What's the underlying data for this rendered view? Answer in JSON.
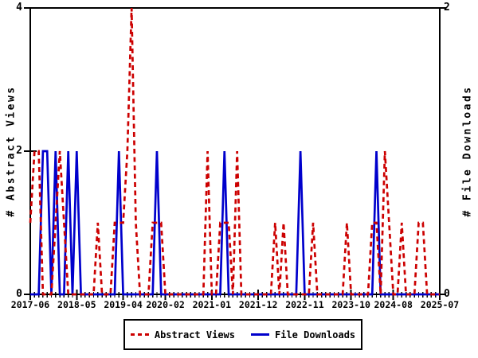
{
  "chart_data": {
    "type": "line",
    "title": "",
    "x_axis": {
      "unit": "month",
      "start": "2017-06",
      "end": "2025-07",
      "n_points": 98,
      "tick_labels": [
        "2017-06",
        "2018-05",
        "2019-04",
        "2020-02",
        "2021-01",
        "2021-12",
        "2022-11",
        "2023-10",
        "2024-08",
        "2025-07"
      ],
      "tick_month_indices": [
        0,
        11,
        22,
        32,
        43,
        54,
        65,
        76,
        86,
        97
      ]
    },
    "left_axis": {
      "label": "# Abstract Views",
      "min": 0,
      "max": 4,
      "tick_values": [
        0,
        2,
        4
      ],
      "tick_labels": [
        "0",
        "2",
        "4"
      ]
    },
    "right_axis": {
      "label": "# File Downloads",
      "min": 0,
      "max": 2,
      "tick_values": [
        0,
        2
      ],
      "tick_labels": [
        "0",
        "2"
      ]
    },
    "grid": false,
    "legend": {
      "position": "bottom-center",
      "entries": [
        "Abstract Views",
        "File Downloads"
      ]
    },
    "series": [
      {
        "name": "Abstract Views",
        "axis": "left",
        "color": "#cc0000",
        "line_style": "dashed",
        "values": [
          1,
          2,
          2,
          0,
          0,
          0,
          1,
          2,
          1,
          0,
          0,
          0,
          0,
          0,
          0,
          0,
          1,
          0,
          0,
          0,
          1,
          1,
          1,
          2,
          4,
          1,
          0,
          0,
          0,
          1,
          1,
          1,
          0,
          0,
          0,
          0,
          0,
          0,
          0,
          0,
          0,
          0,
          2,
          0,
          0,
          1,
          1,
          1,
          0,
          2,
          0,
          0,
          0,
          0,
          0,
          0,
          0,
          0,
          1,
          0,
          1,
          0,
          0,
          0,
          0,
          0,
          0,
          1,
          0,
          0,
          0,
          0,
          0,
          0,
          0,
          1,
          0,
          0,
          0,
          0,
          0,
          1,
          1,
          0,
          2,
          1,
          0,
          0,
          1,
          0,
          0,
          0,
          1,
          1,
          0,
          0,
          0,
          0
        ]
      },
      {
        "name": "File Downloads",
        "axis": "right",
        "color": "#0000cc",
        "line_style": "solid",
        "values": [
          0,
          0,
          0,
          1,
          1,
          0,
          1,
          0,
          0,
          1,
          0,
          1,
          0,
          0,
          0,
          0,
          0,
          0,
          0,
          0,
          0,
          1,
          0,
          0,
          0,
          0,
          0,
          0,
          0,
          0,
          1,
          0,
          0,
          0,
          0,
          0,
          0,
          0,
          0,
          0,
          0,
          0,
          0,
          0,
          0,
          0,
          1,
          0,
          0,
          0,
          0,
          0,
          0,
          0,
          0,
          0,
          0,
          0,
          0,
          0,
          0,
          0,
          0,
          0,
          1,
          0,
          0,
          0,
          0,
          0,
          0,
          0,
          0,
          0,
          0,
          0,
          0,
          0,
          0,
          0,
          0,
          0,
          1,
          0,
          0,
          0,
          0,
          0,
          0,
          0,
          0,
          0,
          0,
          0,
          0,
          0,
          0,
          0
        ]
      }
    ]
  },
  "colors": {
    "abstract_views": "#cc0000",
    "file_downloads": "#0000cc",
    "axis": "#000000",
    "background": "#ffffff"
  }
}
